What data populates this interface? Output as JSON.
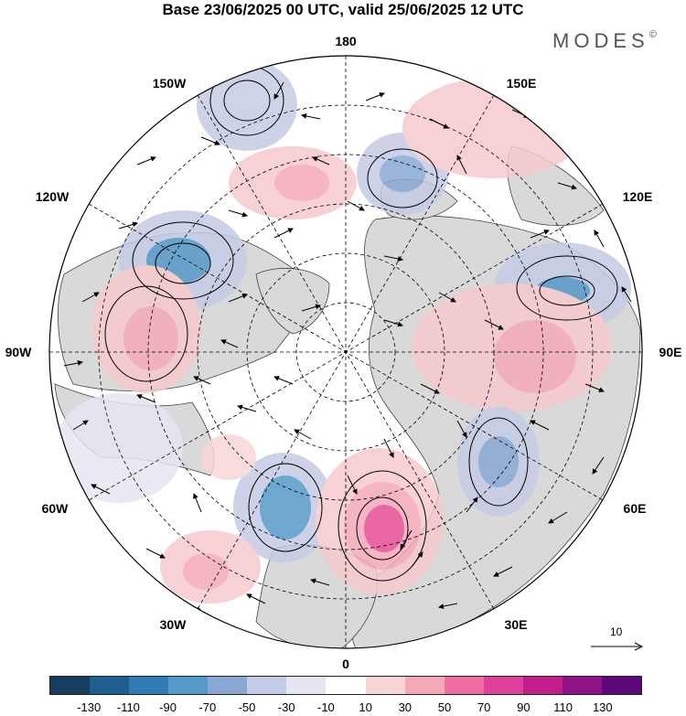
{
  "title": "Base 23/06/2025 00 UTC, valid 25/06/2025 12 UTC",
  "brand": "MODES",
  "brand_mark": "©",
  "longitude_labels": {
    "l180": "180",
    "l150e": "150E",
    "l120e": "120E",
    "l90e": "90E",
    "l60e": "60E",
    "l30e": "30E",
    "l0": "0",
    "l30w": "30W",
    "l60w": "60W",
    "l90w": "90W",
    "l120w": "120W",
    "l150w": "150W"
  },
  "reference_vector": "10",
  "colorbar": {
    "colors": [
      "#173d5e",
      "#1f5f8f",
      "#2f7bb4",
      "#5599c8",
      "#8aa8d4",
      "#c4cbe5",
      "#e6e6f2",
      "#ffffff",
      "#f9d6d6",
      "#f5a9b8",
      "#ee6ea2",
      "#e0409b",
      "#c41e8a",
      "#8e1186",
      "#5a087a"
    ],
    "ticks": [
      "-130",
      "-110",
      "-90",
      "-70",
      "-50",
      "-30",
      "-10",
      "10",
      "30",
      "50",
      "70",
      "90",
      "110",
      "130"
    ]
  },
  "colors": {
    "land": "#d9d9d9",
    "positive": "#f6c9cc",
    "negative": "#c5cbe4",
    "strong_positive": "#e64d96",
    "strong_negative": "#5b8ec4"
  }
}
